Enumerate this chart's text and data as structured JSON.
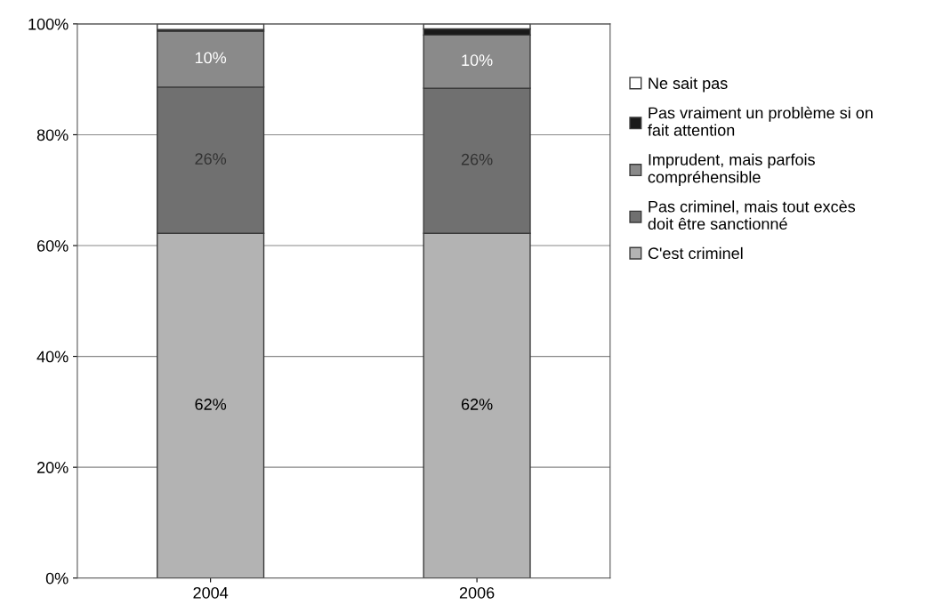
{
  "chart_data": {
    "type": "bar",
    "stacked": true,
    "categories": [
      "2004",
      "2006"
    ],
    "series": [
      {
        "name": "C'est criminel",
        "color": "#b3b3b3",
        "values": [
          62.2,
          62.2
        ],
        "value_labels": [
          "62%",
          "62%"
        ]
      },
      {
        "name": "Pas criminel, mais tout excès\ndoit être sanctionné",
        "color": "#707070",
        "values": [
          26.4,
          26.2
        ],
        "value_labels": [
          "26%",
          "26%"
        ]
      },
      {
        "name": "Imprudent, mais parfois\ncompréhensible",
        "color": "#8a8a8a",
        "values": [
          10.1,
          9.6
        ],
        "value_labels": [
          "10%",
          "10%"
        ]
      },
      {
        "name": "Pas vraiment un problème si on\nfait attention",
        "color": "#1a1a1a",
        "values": [
          0.3,
          1.1
        ]
      },
      {
        "name": "Ne sait pas",
        "color": "#ffffff",
        "values": [
          1.0,
          0.9
        ]
      }
    ],
    "ylim": [
      0,
      100
    ],
    "yticks": [
      {
        "value": 0,
        "label": "0%"
      },
      {
        "value": 20,
        "label": "20%"
      },
      {
        "value": 40,
        "label": "40%"
      },
      {
        "value": 60,
        "label": "60%"
      },
      {
        "value": 80,
        "label": "80%"
      },
      {
        "value": 100,
        "label": "100%"
      }
    ],
    "grid": "y",
    "legend": "right"
  }
}
